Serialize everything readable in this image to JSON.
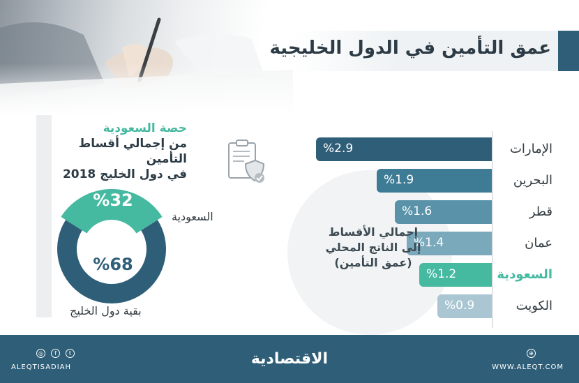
{
  "title": "عمق التأمين في الدول الخليجية",
  "colors": {
    "primary": "#2f5f78",
    "accent": "#46b9a1",
    "text": "#2c3b45"
  },
  "chart_data": [
    {
      "type": "bar",
      "orientation": "horizontal",
      "categories": [
        "الإمارات",
        "البحرين",
        "قطر",
        "عمان",
        "السعودية",
        "الكويت"
      ],
      "values": [
        2.9,
        1.9,
        1.6,
        1.4,
        1.2,
        0.9
      ],
      "value_labels": [
        "%2.9",
        "%1.9",
        "%1.6",
        "%1.4",
        "%1.2",
        "%0.9"
      ],
      "bar_colors": [
        "#2f5f78",
        "#3e7b95",
        "#5a93a9",
        "#7aa9bc",
        "#46b9a1",
        "#a9c6d2"
      ],
      "highlight": "السعودية",
      "caption": [
        "إجمالي الأقساط",
        "إلى الناتج المحلي",
        "(عمق التأمين)"
      ]
    },
    {
      "type": "pie",
      "style": "donut",
      "title": [
        "حصة السعودية",
        "من إجمالي أقساط التأمين",
        "في دول الخليج 2018"
      ],
      "slices": [
        {
          "label": "السعودية",
          "value": 32,
          "value_label": "%32",
          "color": "#46b9a1"
        },
        {
          "label": "بقية دول الخليج",
          "value": 68,
          "value_label": "%68",
          "color": "#2f5f78"
        }
      ]
    }
  ],
  "footer": {
    "logo": "الاقتصادية",
    "handle": "ALEQTISADIAH",
    "url": "WWW.ALEQT.COM",
    "icons": [
      "instagram-icon",
      "facebook-icon",
      "twitter-icon",
      "globe-icon"
    ]
  }
}
